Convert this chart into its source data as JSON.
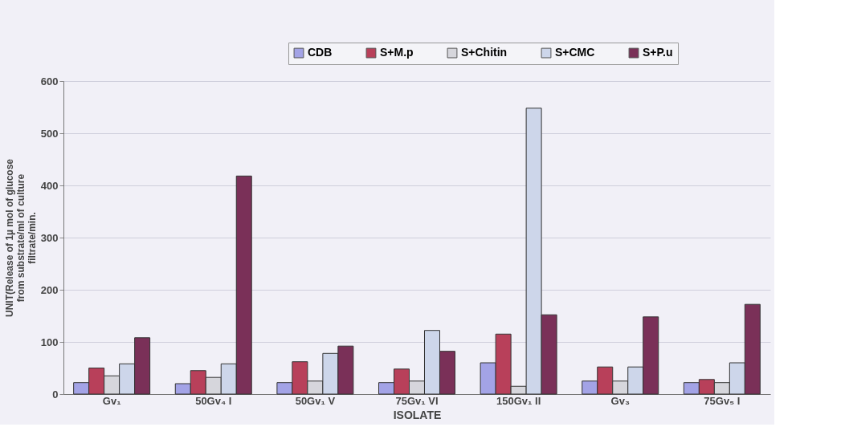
{
  "chart_data": {
    "type": "bar",
    "xlabel": "ISOLATE",
    "ylabel": "UNIT(Release of 1µ mol of glucose from substrate/ml of culture filtrate/min.",
    "categories": [
      "Gv₁",
      "50Gv₄ I",
      "50Gv₁ V",
      "75Gv₁ VI",
      "150Gv₁ II",
      "Gv₃",
      "75Gv₅ I"
    ],
    "series": [
      {
        "name": "CDB",
        "color": "#a3a3e6",
        "values": [
          22,
          20,
          22,
          22,
          60,
          25,
          22
        ]
      },
      {
        "name": "S+M.p",
        "color": "#b8405a",
        "values": [
          50,
          45,
          62,
          48,
          115,
          52,
          28
        ]
      },
      {
        "name": "S+Chitin",
        "color": "#d6d6dc",
        "values": [
          35,
          32,
          25,
          25,
          15,
          25,
          22
        ]
      },
      {
        "name": "S+CMC",
        "color": "#cdd6ea",
        "values": [
          58,
          58,
          78,
          122,
          548,
          52,
          60
        ]
      },
      {
        "name": "S+P.u",
        "color": "#7a3058",
        "values": [
          108,
          418,
          92,
          82,
          152,
          148,
          172
        ]
      }
    ],
    "ylim": [
      0,
      600
    ],
    "yticks": [
      0,
      100,
      200,
      300,
      400,
      500,
      600
    ],
    "grid": "y",
    "legend": "top right"
  }
}
